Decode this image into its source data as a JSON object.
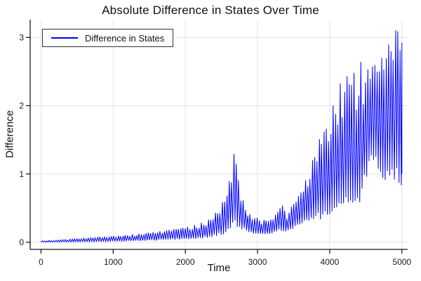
{
  "title": "Absolute Difference in States Over Time",
  "legend": {
    "items": [
      {
        "label": "Difference in States",
        "color": "#0000ff"
      }
    ]
  },
  "colors": {
    "line": "#0000ff",
    "grid": "#e4e4e4",
    "axis": "#1a1a1a",
    "tick_text": "#1a1a1a",
    "background": "#ffffff"
  },
  "chart_data": {
    "type": "line",
    "title": "Absolute Difference in States Over Time",
    "xlabel": "Time",
    "ylabel": "Difference",
    "xlim": [
      -150,
      5080
    ],
    "ylim": [
      -0.105,
      3.26
    ],
    "x_ticks": [
      0,
      1000,
      2000,
      3000,
      4000,
      5000
    ],
    "y_ticks": [
      0,
      1,
      2,
      3
    ],
    "grid": true,
    "legend_position": "top-left",
    "series": [
      {
        "name": "Difference in States",
        "color": "#0000ff",
        "description": "Dense high-frequency oscillation of |state difference|; envelope keyframes [t, value] read from figure",
        "oscillation_period": 32,
        "envelope_upper": [
          [
            0,
            0.02
          ],
          [
            200,
            0.03
          ],
          [
            400,
            0.045
          ],
          [
            600,
            0.06
          ],
          [
            800,
            0.075
          ],
          [
            1000,
            0.09
          ],
          [
            1200,
            0.11
          ],
          [
            1400,
            0.13
          ],
          [
            1600,
            0.16
          ],
          [
            1800,
            0.19
          ],
          [
            2000,
            0.22
          ],
          [
            2150,
            0.26
          ],
          [
            2300,
            0.33
          ],
          [
            2400,
            0.42
          ],
          [
            2500,
            0.58
          ],
          [
            2570,
            0.75
          ],
          [
            2620,
            1.0
          ],
          [
            2670,
            1.37
          ],
          [
            2700,
            1.25
          ],
          [
            2740,
            0.95
          ],
          [
            2780,
            0.7
          ],
          [
            2830,
            0.5
          ],
          [
            2900,
            0.42
          ],
          [
            3000,
            0.36
          ],
          [
            3100,
            0.33
          ],
          [
            3200,
            0.34
          ],
          [
            3280,
            0.46
          ],
          [
            3340,
            0.57
          ],
          [
            3400,
            0.42
          ],
          [
            3460,
            0.52
          ],
          [
            3520,
            0.6
          ],
          [
            3580,
            0.7
          ],
          [
            3640,
            0.88
          ],
          [
            3700,
            1.0
          ],
          [
            3760,
            1.2
          ],
          [
            3820,
            1.45
          ],
          [
            3880,
            1.55
          ],
          [
            3940,
            1.7
          ],
          [
            4000,
            1.9
          ],
          [
            4060,
            2.1
          ],
          [
            4120,
            2.35
          ],
          [
            4180,
            2.3
          ],
          [
            4240,
            2.55
          ],
          [
            4300,
            2.65
          ],
          [
            4360,
            2.5
          ],
          [
            4420,
            2.7
          ],
          [
            4480,
            2.55
          ],
          [
            4540,
            2.6
          ],
          [
            4600,
            2.65
          ],
          [
            4660,
            2.7
          ],
          [
            4720,
            2.8
          ],
          [
            4780,
            2.9
          ],
          [
            4840,
            3.0
          ],
          [
            4900,
            3.15
          ],
          [
            4950,
            3.17
          ],
          [
            5000,
            3.05
          ]
        ],
        "envelope_lower": [
          [
            0,
            0.0
          ],
          [
            500,
            0.005
          ],
          [
            1000,
            0.01
          ],
          [
            1500,
            0.02
          ],
          [
            2000,
            0.04
          ],
          [
            2300,
            0.06
          ],
          [
            2500,
            0.1
          ],
          [
            2600,
            0.14
          ],
          [
            2700,
            0.22
          ],
          [
            2800,
            0.18
          ],
          [
            2900,
            0.13
          ],
          [
            3000,
            0.11
          ],
          [
            3100,
            0.1
          ],
          [
            3200,
            0.12
          ],
          [
            3300,
            0.17
          ],
          [
            3400,
            0.15
          ],
          [
            3500,
            0.2
          ],
          [
            3600,
            0.24
          ],
          [
            3700,
            0.3
          ],
          [
            3800,
            0.32
          ],
          [
            3900,
            0.33
          ],
          [
            4000,
            0.4
          ],
          [
            4100,
            0.45
          ],
          [
            4200,
            0.5
          ],
          [
            4300,
            0.55
          ],
          [
            4420,
            0.55
          ],
          [
            4500,
            0.9
          ],
          [
            4580,
            1.2
          ],
          [
            4650,
            1.1
          ],
          [
            4720,
            0.9
          ],
          [
            4800,
            0.85
          ],
          [
            4900,
            0.9
          ],
          [
            5000,
            0.8
          ]
        ]
      }
    ]
  }
}
